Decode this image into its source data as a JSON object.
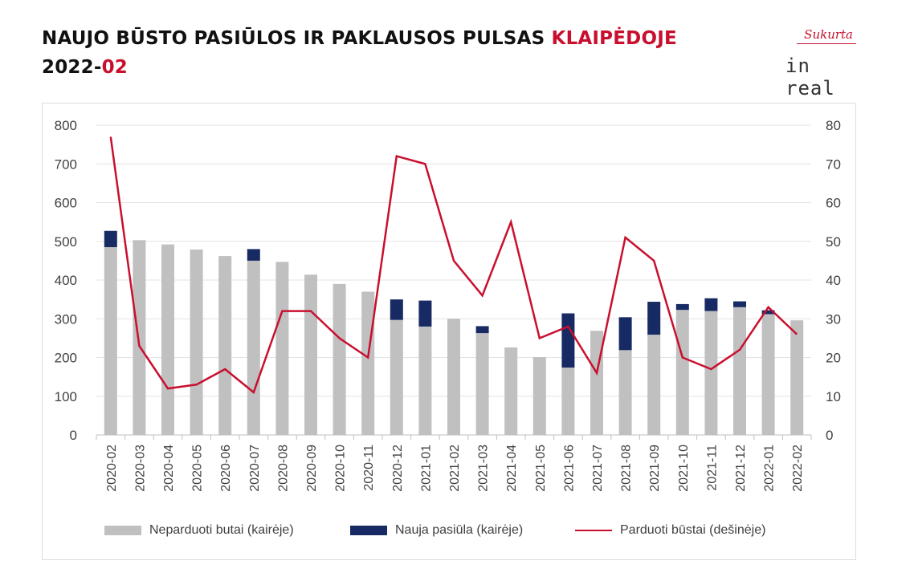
{
  "header": {
    "title_prefix": "NAUJO BŪSTO PASIŪLOS IR PAKLAUSOS PULSAS ",
    "title_city": "KLAIPĖDOJE",
    "date_year": "2022-",
    "date_month": "02"
  },
  "brand": {
    "sukurta": "Sukurta",
    "logo_text": "in real"
  },
  "colors": {
    "unsold": "#c0c0c0",
    "new_supply": "#172a63",
    "sold": "#c8102e",
    "accent": "#c8102e"
  },
  "chart_data": {
    "type": "bar",
    "stacked": true,
    "categories": [
      "2020-02",
      "2020-03",
      "2020-04",
      "2020-05",
      "2020-06",
      "2020-07",
      "2020-08",
      "2020-09",
      "2020-10",
      "2020-11",
      "2020-12",
      "2021-01",
      "2021-02",
      "2021-03",
      "2021-04",
      "2021-05",
      "2021-06",
      "2021-07",
      "2021-08",
      "2021-09",
      "2021-10",
      "2021-11",
      "2021-12",
      "2022-01",
      "2022-02"
    ],
    "series": [
      {
        "name": "Neparduoti butai (kairėje)",
        "type": "bar",
        "axis": "left",
        "values": [
          485,
          503,
          492,
          479,
          462,
          450,
          447,
          414,
          390,
          370,
          297,
          280,
          300,
          263,
          226,
          201,
          174,
          269,
          219,
          259,
          323,
          320,
          330,
          312,
          296
        ]
      },
      {
        "name": "Nauja pasiūla (kairėje)",
        "type": "bar",
        "axis": "left",
        "values": [
          42,
          0,
          0,
          0,
          0,
          30,
          0,
          0,
          0,
          0,
          53,
          67,
          0,
          18,
          0,
          0,
          140,
          0,
          85,
          85,
          15,
          33,
          15,
          10,
          0
        ]
      },
      {
        "name": "Parduoti būstai (dešinėje)",
        "type": "line",
        "axis": "right",
        "values": [
          77,
          23,
          12,
          13,
          17,
          11,
          32,
          32,
          25,
          20,
          72,
          70,
          45,
          36,
          55,
          25,
          28,
          16,
          51,
          45,
          20,
          17,
          22,
          33,
          26
        ]
      }
    ],
    "y_left": {
      "min": 0,
      "max": 800,
      "ticks": [
        "0",
        "100",
        "200",
        "300",
        "400",
        "500",
        "600",
        "700",
        "800"
      ]
    },
    "y_right": {
      "min": 0,
      "max": 80,
      "ticks": [
        "0",
        "10",
        "20",
        "30",
        "40",
        "50",
        "60",
        "70",
        "80"
      ]
    },
    "grid": true,
    "legend_position": "bottom"
  }
}
